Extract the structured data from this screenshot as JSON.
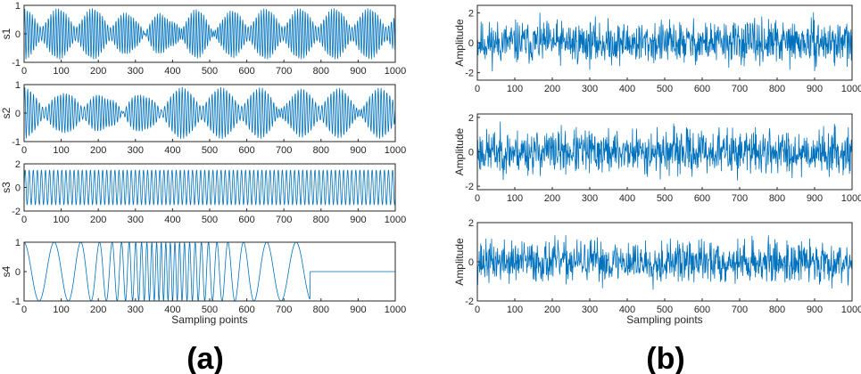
{
  "chart_data": [
    {
      "type": "line",
      "ylabel": "s1",
      "xlabel": "",
      "xlim": [
        0,
        1000
      ],
      "ylim": [
        -1,
        1
      ],
      "yticks": [
        "-1",
        "0",
        "1"
      ],
      "xticks": [
        "0",
        "100",
        "200",
        "300",
        "400",
        "500",
        "600",
        "700",
        "800",
        "900",
        "1000"
      ],
      "signal": {
        "kind": "am",
        "amplitude": 1.0,
        "carrier_period": 7.0,
        "envelope_dips": [
          {
            "x": 300,
            "depth": 0.6
          },
          {
            "x": 400,
            "depth": 0.9
          },
          {
            "x": 520,
            "depth": 0.5
          }
        ]
      }
    },
    {
      "type": "line",
      "ylabel": "s2",
      "xlabel": "",
      "xlim": [
        0,
        1000
      ],
      "ylim": [
        -1,
        1
      ],
      "yticks": [
        "-1",
        "0",
        "1"
      ],
      "xticks": [
        "0",
        "100",
        "200",
        "300",
        "400",
        "500",
        "600",
        "700",
        "800",
        "900",
        "1000"
      ],
      "signal": {
        "kind": "am",
        "amplitude": 1.0,
        "carrier_period": 8.0,
        "envelope_dips": [
          {
            "x": 100,
            "depth": 0.5
          },
          {
            "x": 230,
            "depth": 0.95
          },
          {
            "x": 330,
            "depth": 0.7
          },
          {
            "x": 700,
            "depth": 0.6
          },
          {
            "x": 900,
            "depth": 0.5
          }
        ]
      }
    },
    {
      "type": "line",
      "ylabel": "s3",
      "xlabel": "",
      "xlim": [
        0,
        1000
      ],
      "ylim": [
        -2,
        2
      ],
      "yticks": [
        "-2",
        "0",
        "2"
      ],
      "xticks": [
        "0",
        "100",
        "200",
        "300",
        "400",
        "500",
        "600",
        "700",
        "800",
        "900",
        "1000"
      ],
      "signal": {
        "kind": "sine",
        "amplitude": 1.5,
        "period": 11.0
      }
    },
    {
      "type": "line",
      "ylabel": "s4",
      "xlabel": "Sampling points",
      "xlim": [
        0,
        1000
      ],
      "ylim": [
        -1,
        1
      ],
      "yticks": [
        "-1",
        "0",
        "1"
      ],
      "xticks": [
        "0",
        "100",
        "200",
        "300",
        "400",
        "500",
        "600",
        "700",
        "800",
        "900",
        "1000"
      ],
      "signal": {
        "kind": "chirp",
        "amplitude": 1.0,
        "end": 770,
        "flat_value": 0.0
      }
    },
    {
      "type": "line",
      "ylabel": "Amplitude",
      "xlabel": "",
      "xlim": [
        0,
        1000
      ],
      "ylim": [
        -2.5,
        2.5
      ],
      "yticks": [
        "-2",
        "0",
        "2"
      ],
      "xticks": [
        "0",
        "100",
        "200",
        "300",
        "400",
        "500",
        "600",
        "700",
        "800",
        "900",
        "1000"
      ],
      "signal": {
        "kind": "noise",
        "amplitude": 1.0,
        "seed": 11
      }
    },
    {
      "type": "line",
      "ylabel": "Amplitude",
      "xlabel": "",
      "xlim": [
        0,
        1000
      ],
      "ylim": [
        -2.2,
        2.2
      ],
      "yticks": [
        "-2",
        "0",
        "2"
      ],
      "xticks": [
        "0",
        "100",
        "200",
        "300",
        "400",
        "500",
        "600",
        "700",
        "800",
        "900",
        "1000"
      ],
      "signal": {
        "kind": "noise",
        "amplitude": 0.9,
        "seed": 23
      }
    },
    {
      "type": "line",
      "ylabel": "Amplitude",
      "xlabel": "Sampling points",
      "xlim": [
        0,
        1000
      ],
      "ylim": [
        -2,
        2
      ],
      "yticks": [
        "-2",
        "0",
        "2"
      ],
      "xticks": [
        "0",
        "100",
        "200",
        "300",
        "400",
        "500",
        "600",
        "700",
        "800",
        "900",
        "1000"
      ],
      "signal": {
        "kind": "noise",
        "amplitude": 0.75,
        "seed": 37
      }
    }
  ],
  "labels": {
    "a": "(a)",
    "b": "(b)"
  },
  "colors": {
    "line": "#0072BD",
    "axis": "#262626"
  }
}
